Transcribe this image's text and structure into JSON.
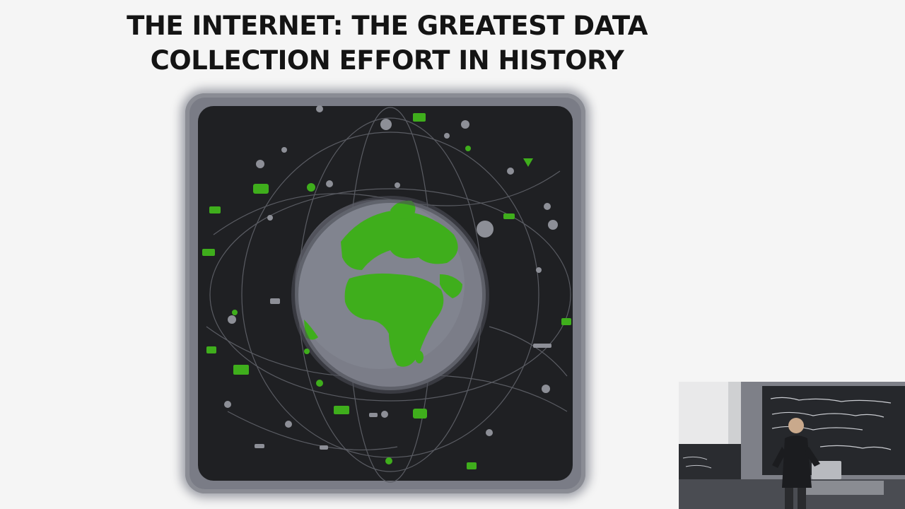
{
  "slide": {
    "title_line1": "THE INTERNET: THE GREATEST DATA",
    "title_line2": "COLLECTION EFFORT IN HISTORY"
  },
  "illustration": {
    "subject": "globe-with-network-data",
    "land_color": "#3fae1c",
    "ocean_color": "#7b7d88",
    "space_color": "#1f2023"
  },
  "webcam": {
    "subject": "lecturer-at-blackboard"
  }
}
